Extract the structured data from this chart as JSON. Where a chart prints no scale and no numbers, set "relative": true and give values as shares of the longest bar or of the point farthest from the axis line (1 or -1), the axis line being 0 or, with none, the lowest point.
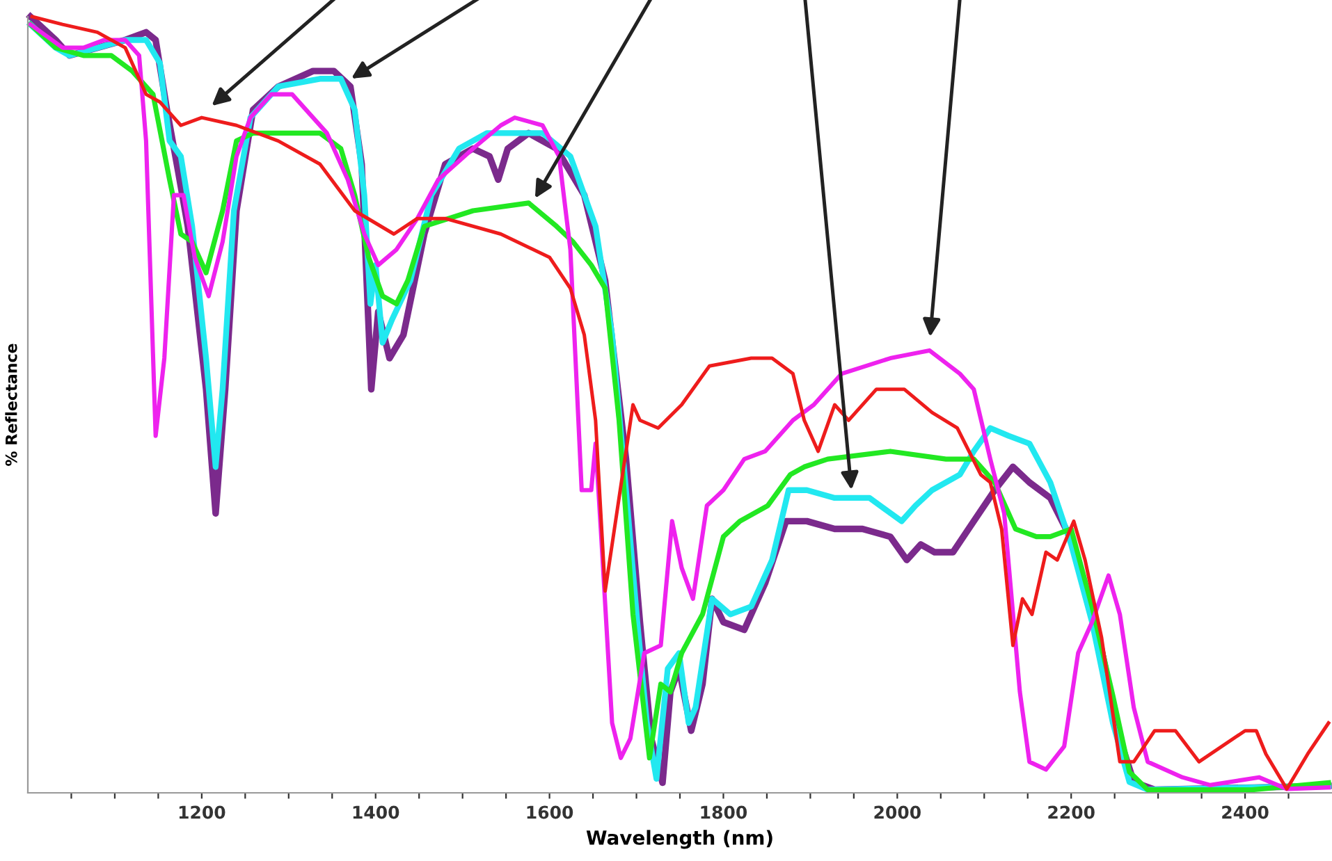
{
  "chart_data": {
    "type": "line",
    "relative": true,
    "xlabel": "Wavelength (nm)",
    "ylabel": "% Reflectance",
    "xlim": [
      1000,
      2500
    ],
    "xticks": [
      {
        "value": 1050,
        "label": null
      },
      {
        "value": 1100,
        "label": null
      },
      {
        "value": 1150,
        "label": null
      },
      1200,
      {
        "value": 1250,
        "label": null
      },
      {
        "value": 1300,
        "label": null
      },
      {
        "value": 1350,
        "label": null
      },
      1400,
      {
        "value": 1450,
        "label": null
      },
      {
        "value": 1500,
        "label": null
      },
      {
        "value": 1550,
        "label": null
      },
      1600,
      {
        "value": 1650,
        "label": null
      },
      {
        "value": 1700,
        "label": null
      },
      {
        "value": 1750,
        "label": null
      },
      1800,
      {
        "value": 1850,
        "label": null
      },
      {
        "value": 1900,
        "label": null
      },
      {
        "value": 1950,
        "label": null
      },
      2000,
      {
        "value": 2050,
        "label": null
      },
      {
        "value": 2100,
        "label": null
      },
      {
        "value": 2150,
        "label": null
      },
      2200,
      {
        "value": 2250,
        "label": null
      },
      {
        "value": 2300,
        "label": null
      },
      {
        "value": 2350,
        "label": null
      },
      2400,
      {
        "value": 2450,
        "label": null
      }
    ],
    "grid": false,
    "legend": false,
    "marker": "none",
    "line_style": "solid",
    "series": [
      {
        "color": "#7b2a8c",
        "x": [
          1003,
          1032,
          1048,
          1080,
          1112,
          1136,
          1147,
          1160,
          1173,
          1184,
          1205,
          1216,
          1227,
          1240,
          1259,
          1288,
          1328,
          1352,
          1371,
          1384,
          1395,
          1403,
          1416,
          1432,
          1456,
          1480,
          1512,
          1531,
          1541,
          1552,
          1576,
          1608,
          1640,
          1664,
          1688,
          1704,
          1717,
          1730,
          1739,
          1749,
          1763,
          1776,
          1787,
          1800,
          1824,
          1848,
          1872,
          1896,
          1928,
          1960,
          1992,
          2011,
          2027,
          2043,
          2064,
          2088,
          2112,
          2133,
          2152,
          2176,
          2203,
          2232,
          2256,
          2272,
          2296,
          2496
        ],
        "values": [
          1.0,
          0.97,
          0.95,
          0.96,
          0.97,
          0.98,
          0.97,
          0.88,
          0.8,
          0.73,
          0.52,
          0.36,
          0.52,
          0.75,
          0.88,
          0.91,
          0.93,
          0.93,
          0.91,
          0.81,
          0.52,
          0.62,
          0.56,
          0.59,
          0.72,
          0.81,
          0.83,
          0.82,
          0.79,
          0.83,
          0.85,
          0.83,
          0.77,
          0.66,
          0.43,
          0.22,
          0.07,
          0.013,
          0.13,
          0.16,
          0.08,
          0.14,
          0.25,
          0.22,
          0.21,
          0.27,
          0.35,
          0.35,
          0.34,
          0.34,
          0.33,
          0.3,
          0.32,
          0.31,
          0.31,
          0.35,
          0.39,
          0.42,
          0.4,
          0.38,
          0.32,
          0.2,
          0.07,
          0.014,
          0.004,
          0.009
        ]
      },
      {
        "color": "#22e8f0",
        "x": [
          1003,
          1032,
          1048,
          1080,
          1112,
          1136,
          1152,
          1163,
          1176,
          1189,
          1205,
          1216,
          1224,
          1237,
          1256,
          1288,
          1336,
          1360,
          1376,
          1387,
          1394,
          1400,
          1408,
          1419,
          1440,
          1464,
          1496,
          1528,
          1568,
          1592,
          1624,
          1653,
          1672,
          1688,
          1701,
          1712,
          1723,
          1736,
          1749,
          1760,
          1768,
          1787,
          1808,
          1832,
          1856,
          1875,
          1896,
          1928,
          1968,
          2005,
          2021,
          2040,
          2072,
          2088,
          2107,
          2128,
          2152,
          2176,
          2200,
          2224,
          2248,
          2267,
          2288,
          2496
        ],
        "values": [
          0.99,
          0.96,
          0.95,
          0.96,
          0.97,
          0.97,
          0.94,
          0.84,
          0.82,
          0.73,
          0.56,
          0.42,
          0.52,
          0.75,
          0.87,
          0.91,
          0.92,
          0.92,
          0.88,
          0.77,
          0.63,
          0.68,
          0.58,
          0.61,
          0.66,
          0.77,
          0.83,
          0.85,
          0.85,
          0.85,
          0.82,
          0.73,
          0.59,
          0.39,
          0.22,
          0.09,
          0.018,
          0.16,
          0.18,
          0.09,
          0.11,
          0.25,
          0.23,
          0.24,
          0.3,
          0.39,
          0.39,
          0.38,
          0.38,
          0.35,
          0.37,
          0.39,
          0.41,
          0.44,
          0.47,
          0.46,
          0.45,
          0.4,
          0.32,
          0.22,
          0.09,
          0.014,
          0.004,
          0.009
        ]
      },
      {
        "color": "#22e822",
        "x": [
          1003,
          1032,
          1064,
          1096,
          1120,
          1144,
          1163,
          1176,
          1189,
          1205,
          1224,
          1240,
          1259,
          1288,
          1336,
          1360,
          1376,
          1392,
          1408,
          1424,
          1437,
          1456,
          1512,
          1576,
          1608,
          1627,
          1648,
          1664,
          1680,
          1696,
          1715,
          1728,
          1739,
          1752,
          1776,
          1800,
          1819,
          1851,
          1877,
          1893,
          1920,
          1992,
          2056,
          2088,
          2112,
          2136,
          2160,
          2176,
          2200,
          2224,
          2248,
          2267,
          2288,
          2408,
          2496
        ],
        "values": [
          0.99,
          0.96,
          0.95,
          0.95,
          0.93,
          0.9,
          0.79,
          0.72,
          0.71,
          0.67,
          0.75,
          0.84,
          0.85,
          0.85,
          0.85,
          0.83,
          0.77,
          0.69,
          0.64,
          0.63,
          0.66,
          0.73,
          0.75,
          0.76,
          0.73,
          0.71,
          0.68,
          0.65,
          0.48,
          0.23,
          0.045,
          0.14,
          0.13,
          0.18,
          0.23,
          0.33,
          0.35,
          0.37,
          0.41,
          0.42,
          0.43,
          0.44,
          0.43,
          0.43,
          0.4,
          0.34,
          0.33,
          0.33,
          0.34,
          0.24,
          0.125,
          0.027,
          0.004,
          0.004,
          0.013
        ]
      },
      {
        "color": "#ee22ee",
        "x": [
          1003,
          1040,
          1064,
          1088,
          1112,
          1128,
          1136,
          1147,
          1157,
          1168,
          1179,
          1192,
          1208,
          1224,
          1240,
          1256,
          1280,
          1304,
          1344,
          1368,
          1387,
          1403,
          1424,
          1448,
          1472,
          1512,
          1544,
          1560,
          1592,
          1611,
          1624,
          1637,
          1648,
          1653,
          1659,
          1672,
          1682,
          1693,
          1709,
          1728,
          1741,
          1752,
          1765,
          1781,
          1800,
          1824,
          1848,
          1880,
          1904,
          1936,
          1992,
          2037,
          2072,
          2088,
          2107,
          2123,
          2141,
          2152,
          2171,
          2192,
          2208,
          2224,
          2243,
          2256,
          2272,
          2288,
          2328,
          2360,
          2416,
          2448,
          2496
        ],
        "values": [
          0.99,
          0.96,
          0.96,
          0.97,
          0.97,
          0.95,
          0.84,
          0.46,
          0.56,
          0.77,
          0.77,
          0.69,
          0.64,
          0.71,
          0.82,
          0.87,
          0.9,
          0.9,
          0.85,
          0.79,
          0.72,
          0.68,
          0.7,
          0.74,
          0.79,
          0.83,
          0.86,
          0.87,
          0.86,
          0.82,
          0.7,
          0.39,
          0.39,
          0.45,
          0.34,
          0.09,
          0.045,
          0.07,
          0.18,
          0.19,
          0.35,
          0.29,
          0.25,
          0.37,
          0.39,
          0.43,
          0.44,
          0.48,
          0.5,
          0.54,
          0.56,
          0.57,
          0.54,
          0.52,
          0.43,
          0.36,
          0.13,
          0.04,
          0.03,
          0.06,
          0.18,
          0.22,
          0.28,
          0.23,
          0.11,
          0.04,
          0.02,
          0.01,
          0.02,
          0.005,
          0.007
        ]
      },
      {
        "color": "#ee1c1c",
        "x": [
          1005,
          1040,
          1080,
          1112,
          1136,
          1152,
          1176,
          1200,
          1240,
          1288,
          1336,
          1376,
          1421,
          1448,
          1480,
          1544,
          1600,
          1624,
          1640,
          1653,
          1664,
          1680,
          1696,
          1704,
          1725,
          1752,
          1784,
          1832,
          1856,
          1880,
          1893,
          1909,
          1928,
          1944,
          1976,
          2008,
          2040,
          2069,
          2096,
          2107,
          2120,
          2133,
          2144,
          2155,
          2171,
          2184,
          2203,
          2216,
          2235,
          2256,
          2272,
          2296,
          2320,
          2347,
          2400,
          2413,
          2424,
          2448,
          2472,
          2496
        ],
        "values": [
          1.0,
          0.99,
          0.98,
          0.96,
          0.9,
          0.89,
          0.86,
          0.87,
          0.86,
          0.84,
          0.81,
          0.75,
          0.72,
          0.74,
          0.74,
          0.72,
          0.69,
          0.65,
          0.59,
          0.48,
          0.26,
          0.38,
          0.5,
          0.48,
          0.47,
          0.5,
          0.55,
          0.56,
          0.56,
          0.54,
          0.48,
          0.44,
          0.5,
          0.48,
          0.52,
          0.52,
          0.49,
          0.47,
          0.41,
          0.4,
          0.34,
          0.19,
          0.25,
          0.23,
          0.31,
          0.3,
          0.35,
          0.3,
          0.2,
          0.04,
          0.04,
          0.08,
          0.08,
          0.04,
          0.08,
          0.08,
          0.05,
          0.005,
          0.05,
          0.09
        ]
      }
    ]
  }
}
